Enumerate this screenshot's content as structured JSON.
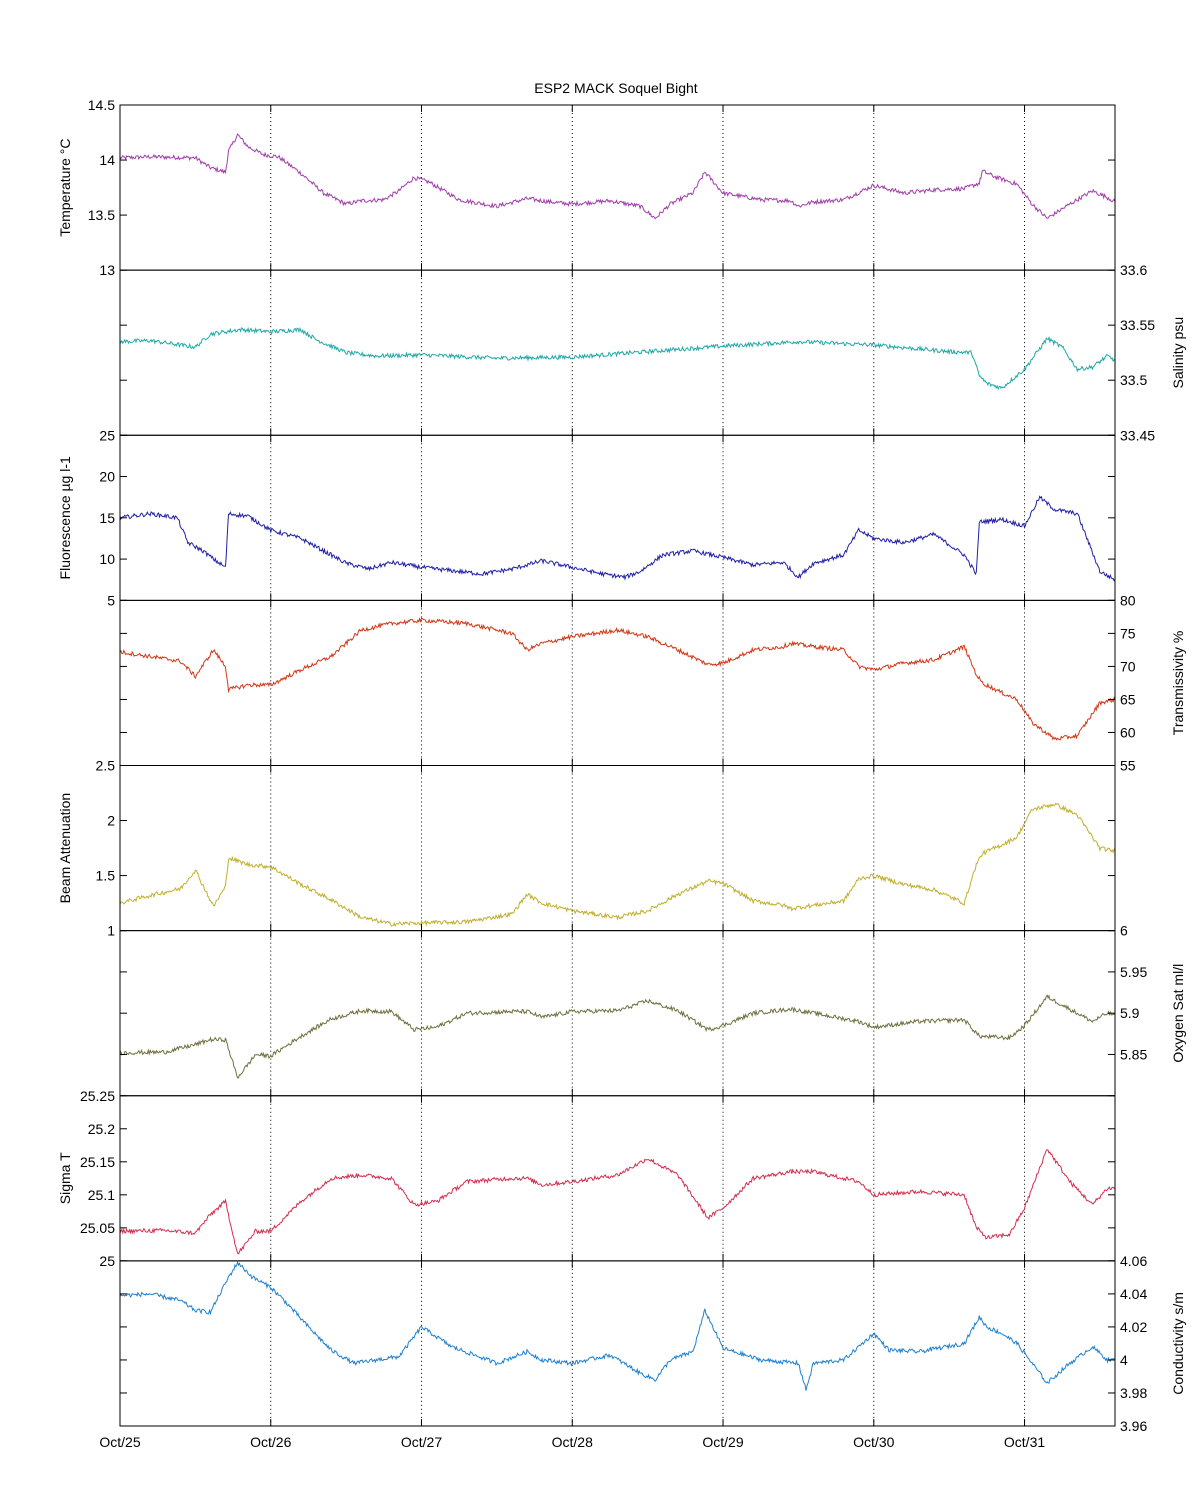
{
  "chart_data": {
    "type": "line",
    "title": "ESP2 MACK  Soquel Bight",
    "xlim": [
      0,
      6.6
    ],
    "x_ticks": [
      0,
      1,
      2,
      3,
      4,
      5,
      6
    ],
    "x_tick_labels": [
      "Oct/25",
      "Oct/26",
      "Oct/27",
      "Oct/28",
      "Oct/29",
      "Oct/30",
      "Oct/31"
    ],
    "grid": "vertical dotted at day ticks",
    "panels": [
      {
        "id": "temperature",
        "ylabel": "Temperature °C",
        "axis_side": "left",
        "ylim": [
          13,
          14.5
        ],
        "yticks": [
          13,
          13.5,
          14,
          14.5
        ],
        "ytick_labels": [
          "13",
          "13.5",
          "14",
          "14.5"
        ],
        "color": "#a040a8",
        "series": [
          {
            "x": [
              0,
              0.2,
              0.5,
              0.6,
              0.7,
              0.72,
              0.78,
              0.85,
              0.95,
              1.05,
              1.2,
              1.35,
              1.5,
              1.6,
              1.75,
              1.85,
              1.95,
              2.05,
              2.25,
              2.5,
              2.7,
              2.85,
              3.0,
              3.25,
              3.45,
              3.55,
              3.65,
              3.8,
              3.88,
              4.0,
              4.25,
              4.45,
              4.5,
              4.6,
              4.8,
              5.0,
              5.2,
              5.4,
              5.6,
              5.7,
              5.72,
              5.8,
              5.95,
              6.05,
              6.15,
              6.3,
              6.45,
              6.55,
              6.6
            ],
            "y": [
              14.02,
              14.03,
              14.02,
              13.93,
              13.89,
              14.08,
              14.23,
              14.12,
              14.05,
              14.03,
              13.88,
              13.7,
              13.6,
              13.63,
              13.64,
              13.72,
              13.84,
              13.8,
              13.64,
              13.58,
              13.65,
              13.62,
              13.6,
              13.63,
              13.58,
              13.47,
              13.6,
              13.7,
              13.89,
              13.7,
              13.64,
              13.63,
              13.58,
              13.62,
              13.64,
              13.77,
              13.7,
              13.73,
              13.74,
              13.79,
              13.9,
              13.85,
              13.78,
              13.6,
              13.47,
              13.6,
              13.72,
              13.66,
              13.62
            ]
          }
        ]
      },
      {
        "id": "salinity",
        "ylabel": "Salinity psu",
        "axis_side": "right",
        "ylim": [
          33.45,
          33.6
        ],
        "yticks": [
          33.45,
          33.5,
          33.55,
          33.6
        ],
        "ytick_labels": [
          "33.45",
          "33.5",
          "33.55",
          "33.6"
        ],
        "color": "#20a8a8",
        "series": [
          {
            "x": [
              0,
              0.2,
              0.4,
              0.5,
              0.6,
              0.8,
              1.0,
              1.2,
              1.3,
              1.5,
              1.7,
              2.0,
              2.5,
              3.0,
              3.5,
              4.0,
              4.5,
              5.0,
              5.5,
              5.65,
              5.7,
              5.75,
              5.85,
              6.0,
              6.15,
              6.25,
              6.35,
              6.45,
              6.55,
              6.6
            ],
            "y": [
              33.535,
              33.536,
              33.532,
              33.53,
              33.542,
              33.546,
              33.544,
              33.546,
              33.537,
              33.525,
              33.522,
              33.523,
              33.52,
              33.521,
              33.526,
              33.531,
              33.535,
              33.532,
              33.526,
              33.525,
              33.504,
              33.497,
              33.493,
              33.51,
              33.538,
              33.53,
              33.51,
              33.512,
              33.522,
              33.518
            ]
          }
        ]
      },
      {
        "id": "fluorescence",
        "ylabel": "Fluorescence µg l-1",
        "axis_side": "left",
        "ylim": [
          5,
          25
        ],
        "yticks": [
          5,
          10,
          15,
          20,
          25
        ],
        "ytick_labels": [
          "5",
          "10",
          "15",
          "20",
          "25"
        ],
        "color": "#2020a8",
        "series": [
          {
            "x": [
              0,
              0.2,
              0.38,
              0.45,
              0.55,
              0.62,
              0.7,
              0.72,
              0.85,
              1.0,
              1.2,
              1.3,
              1.5,
              1.65,
              1.8,
              2.0,
              2.2,
              2.4,
              2.6,
              2.8,
              3.0,
              3.2,
              3.35,
              3.45,
              3.6,
              3.8,
              4.0,
              4.2,
              4.4,
              4.5,
              4.6,
              4.8,
              4.9,
              5.0,
              5.2,
              5.4,
              5.6,
              5.68,
              5.7,
              5.85,
              6.0,
              6.1,
              6.2,
              6.35,
              6.5,
              6.6
            ],
            "y": [
              15,
              15.5,
              15,
              12,
              11,
              10,
              9,
              15.5,
              15.2,
              13.5,
              12.5,
              11.5,
              9.5,
              8.8,
              9.6,
              9,
              8.6,
              8.2,
              8.8,
              9.8,
              9,
              8.2,
              7.8,
              8.5,
              10.5,
              11,
              10.2,
              9.3,
              9.6,
              7.8,
              9.5,
              10.5,
              13.5,
              12.5,
              12,
              13,
              10.5,
              8.2,
              14.5,
              14.8,
              14,
              17.5,
              16,
              15.5,
              8.5,
              7.5
            ]
          }
        ]
      },
      {
        "id": "transmissivity",
        "ylabel": "Transmissivity %",
        "axis_side": "right",
        "ylim": [
          55,
          80
        ],
        "yticks": [
          55,
          60,
          65,
          70,
          75,
          80
        ],
        "ytick_labels": [
          "55",
          "60",
          "65",
          "70",
          "75",
          "80"
        ],
        "color": "#d03818",
        "series": [
          {
            "x": [
              0,
              0.2,
              0.4,
              0.5,
              0.62,
              0.7,
              0.72,
              0.85,
              1.0,
              1.2,
              1.4,
              1.6,
              1.8,
              2.0,
              2.3,
              2.6,
              2.7,
              2.8,
              3.0,
              3.3,
              3.5,
              3.7,
              3.9,
              4.0,
              4.2,
              4.4,
              4.45,
              4.6,
              4.8,
              4.9,
              5.0,
              5.2,
              5.4,
              5.6,
              5.68,
              5.72,
              5.85,
              5.95,
              6.05,
              6.2,
              6.35,
              6.5,
              6.6
            ],
            "y": [
              72.2,
              71.5,
              70.8,
              68.5,
              72.5,
              70,
              66.5,
              67.2,
              67.2,
              69.5,
              71.5,
              75.5,
              76.5,
              77,
              76.5,
              75,
              72.5,
              73.5,
              74.5,
              75.5,
              74.5,
              72.5,
              70.3,
              70.5,
              72.5,
              73,
              73.5,
              73,
              72.5,
              70,
              69.5,
              70.5,
              71,
              73,
              68.8,
              67.5,
              66,
              65,
              61.5,
              59,
              59.5,
              64.5,
              65
            ]
          }
        ]
      },
      {
        "id": "beam-attenuation",
        "ylabel": "Beam Attenuation",
        "axis_side": "left",
        "ylim": [
          1,
          2.5
        ],
        "yticks": [
          1,
          1.5,
          2,
          2.5
        ],
        "ytick_labels": [
          "1",
          "1.5",
          "2",
          "2.5"
        ],
        "color": "#c0b030",
        "series": [
          {
            "x": [
              0,
              0.2,
              0.4,
              0.5,
              0.62,
              0.7,
              0.72,
              0.85,
              1.0,
              1.2,
              1.4,
              1.6,
              1.8,
              2.0,
              2.3,
              2.6,
              2.7,
              2.8,
              3.0,
              3.3,
              3.5,
              3.7,
              3.9,
              4.0,
              4.2,
              4.4,
              4.45,
              4.6,
              4.8,
              4.9,
              5.0,
              5.2,
              5.4,
              5.6,
              5.68,
              5.72,
              5.85,
              5.95,
              6.05,
              6.2,
              6.35,
              6.5,
              6.6
            ],
            "y": [
              1.25,
              1.32,
              1.38,
              1.55,
              1.22,
              1.4,
              1.66,
              1.6,
              1.58,
              1.42,
              1.28,
              1.12,
              1.06,
              1.07,
              1.08,
              1.15,
              1.33,
              1.25,
              1.18,
              1.12,
              1.18,
              1.33,
              1.45,
              1.43,
              1.27,
              1.23,
              1.2,
              1.23,
              1.27,
              1.47,
              1.5,
              1.42,
              1.37,
              1.25,
              1.6,
              1.7,
              1.78,
              1.85,
              2.1,
              2.15,
              2.05,
              1.75,
              1.72
            ]
          }
        ]
      },
      {
        "id": "oxygen-sat",
        "ylabel": "Oxygen Sat ml/l",
        "axis_side": "right",
        "ylim": [
          5.8,
          6.0
        ],
        "yticks": [
          5.85,
          5.9,
          5.95,
          6.0
        ],
        "ytick_labels": [
          "5.85",
          "5.9",
          "5.95",
          "6"
        ],
        "color": "#707040",
        "series": [
          {
            "x": [
              0,
              0.3,
              0.5,
              0.6,
              0.7,
              0.78,
              0.9,
              1.0,
              1.2,
              1.4,
              1.6,
              1.8,
              1.95,
              2.1,
              2.3,
              2.6,
              2.7,
              2.8,
              3.0,
              3.3,
              3.5,
              3.7,
              3.9,
              4.0,
              4.2,
              4.45,
              4.6,
              4.9,
              5.0,
              5.3,
              5.6,
              5.7,
              5.9,
              6.0,
              6.15,
              6.3,
              6.45,
              6.55,
              6.6
            ],
            "y": [
              5.852,
              5.853,
              5.862,
              5.868,
              5.868,
              5.822,
              5.85,
              5.848,
              5.872,
              5.893,
              5.903,
              5.902,
              5.88,
              5.883,
              5.9,
              5.902,
              5.902,
              5.895,
              5.902,
              5.903,
              5.915,
              5.903,
              5.88,
              5.885,
              5.9,
              5.905,
              5.9,
              5.89,
              5.883,
              5.89,
              5.892,
              5.872,
              5.87,
              5.885,
              5.92,
              5.905,
              5.89,
              5.9,
              5.898
            ]
          }
        ]
      },
      {
        "id": "sigma-t",
        "ylabel": "Sigma T",
        "axis_side": "left",
        "ylim": [
          25,
          25.25
        ],
        "yticks": [
          25,
          25.05,
          25.1,
          25.15,
          25.2,
          25.25
        ],
        "ytick_labels": [
          "25",
          "25.05",
          "25.1",
          "25.15",
          "25.2",
          "25.25"
        ],
        "color": "#d03050",
        "series": [
          {
            "x": [
              0,
              0.3,
              0.5,
              0.6,
              0.7,
              0.78,
              0.9,
              1.0,
              1.2,
              1.4,
              1.6,
              1.8,
              1.95,
              2.1,
              2.3,
              2.6,
              2.7,
              2.8,
              3.0,
              3.3,
              3.5,
              3.7,
              3.9,
              4.0,
              4.2,
              4.45,
              4.6,
              4.9,
              5.0,
              5.3,
              5.6,
              5.68,
              5.75,
              5.9,
              6.0,
              6.15,
              6.3,
              6.45,
              6.55,
              6.6
            ],
            "y": [
              25.045,
              25.046,
              25.042,
              25.07,
              25.09,
              25.01,
              25.045,
              25.045,
              25.09,
              25.125,
              25.13,
              25.125,
              25.085,
              25.09,
              25.12,
              25.125,
              25.125,
              25.115,
              25.12,
              25.13,
              25.155,
              25.13,
              25.065,
              25.08,
              25.125,
              25.135,
              25.135,
              25.12,
              25.1,
              25.105,
              25.1,
              25.05,
              25.035,
              25.04,
              25.08,
              25.17,
              25.12,
              25.085,
              25.11,
              25.11
            ]
          }
        ]
      },
      {
        "id": "conductivity",
        "ylabel": "Conductivity s/m",
        "axis_side": "right",
        "ylim": [
          3.96,
          4.06
        ],
        "yticks": [
          3.96,
          3.98,
          4.0,
          4.02,
          4.04,
          4.06
        ],
        "ytick_labels": [
          "3.96",
          "3.98",
          "4",
          "4.02",
          "4.04",
          "4.06"
        ],
        "color": "#2080d0",
        "series": [
          {
            "x": [
              0,
              0.2,
              0.4,
              0.5,
              0.6,
              0.72,
              0.78,
              0.88,
              1.0,
              1.1,
              1.25,
              1.4,
              1.55,
              1.7,
              1.85,
              2.0,
              2.2,
              2.5,
              2.7,
              2.8,
              3.0,
              3.25,
              3.45,
              3.55,
              3.65,
              3.8,
              3.88,
              4.0,
              4.25,
              4.5,
              4.55,
              4.6,
              4.8,
              5.0,
              5.1,
              5.3,
              5.6,
              5.7,
              5.75,
              5.85,
              5.95,
              6.05,
              6.15,
              6.3,
              6.45,
              6.55,
              6.6
            ],
            "y": [
              4.039,
              4.04,
              4.036,
              4.03,
              4.029,
              4.05,
              4.059,
              4.05,
              4.044,
              4.035,
              4.02,
              4.006,
              3.998,
              4.0,
              4.002,
              4.02,
              4.008,
              3.998,
              4.005,
              4.0,
              3.998,
              4.003,
              3.992,
              3.988,
              4.0,
              4.005,
              4.03,
              4.007,
              4.0,
              3.998,
              3.982,
              3.998,
              4.0,
              4.016,
              4.006,
              4.005,
              4.01,
              4.026,
              4.02,
              4.016,
              4.01,
              3.998,
              3.986,
              3.998,
              4.008,
              4.0,
              4.0
            ]
          }
        ]
      }
    ]
  }
}
